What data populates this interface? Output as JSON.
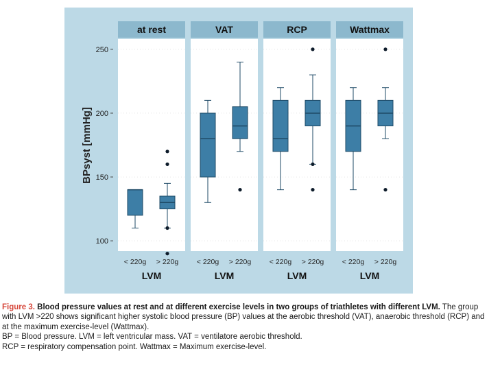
{
  "chart_data": {
    "type": "box",
    "ylabel": "BPsyst [mmHg]",
    "xlabel": "LVM",
    "yticks": [
      100,
      150,
      200,
      250
    ],
    "ylim": [
      92,
      258
    ],
    "categories": [
      "< 220g",
      "> 220g"
    ],
    "panels": [
      {
        "title": "at rest",
        "boxes": [
          {
            "group": "< 220g",
            "whisker_low": 110,
            "q1": 120,
            "median": 140,
            "q3": 140,
            "whisker_high": 140,
            "outliers": []
          },
          {
            "group": "> 220g",
            "whisker_low": 110,
            "q1": 125,
            "median": 130,
            "q3": 135,
            "whisker_high": 145,
            "outliers": [
              90,
              110,
              160,
              170
            ]
          }
        ]
      },
      {
        "title": "VAT",
        "boxes": [
          {
            "group": "< 220g",
            "whisker_low": 130,
            "q1": 150,
            "median": 180,
            "q3": 200,
            "whisker_high": 210,
            "outliers": []
          },
          {
            "group": "> 220g",
            "whisker_low": 170,
            "q1": 180,
            "median": 190,
            "q3": 205,
            "whisker_high": 240,
            "outliers": [
              140
            ]
          }
        ]
      },
      {
        "title": "RCP",
        "boxes": [
          {
            "group": "< 220g",
            "whisker_low": 140,
            "q1": 170,
            "median": 180,
            "q3": 210,
            "whisker_high": 220,
            "outliers": []
          },
          {
            "group": "> 220g",
            "whisker_low": 160,
            "q1": 190,
            "median": 200,
            "q3": 210,
            "whisker_high": 230,
            "outliers": [
              140,
              160,
              250
            ]
          }
        ]
      },
      {
        "title": "Wattmax",
        "boxes": [
          {
            "group": "< 220g",
            "whisker_low": 140,
            "q1": 170,
            "median": 190,
            "q3": 210,
            "whisker_high": 220,
            "outliers": []
          },
          {
            "group": "> 220g",
            "whisker_low": 180,
            "q1": 190,
            "median": 200,
            "q3": 210,
            "whisker_high": 220,
            "outliers": [
              140,
              250
            ]
          }
        ]
      }
    ],
    "colors": {
      "panel_background": "#bcd9e6",
      "plot_background": "#ffffff",
      "strip": "#8cb8cd",
      "box_fill": "#3d7ea6",
      "box_stroke": "#1e4a66"
    }
  },
  "caption": {
    "label": "Figure 3.",
    "title": "Blood pressure values at rest and at different exercise levels in two groups of triathletes with different LVM.",
    "body": "The group with LVM >220 shows significant higher systolic blood pressure (BP) values at the aerobic threshold (VAT), anaerobic threshold (RCP) and at the maximum exercise-level (Wattmax).",
    "abbrev1": "BP = Blood pressure. LVM = left ventricular mass. VAT = ventilatore aerobic threshold.",
    "abbrev2": "RCP = respiratory compensation point. Wattmax = Maximum exercise-level."
  }
}
